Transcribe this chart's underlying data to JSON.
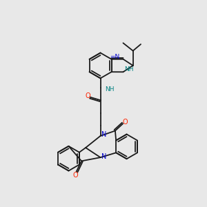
{
  "bg_color": "#e8e8e8",
  "bond_color": "#1a1a1a",
  "nitrogen_color": "#0000cc",
  "oxygen_color": "#ff2200",
  "nh_color": "#008080",
  "lw": 1.3,
  "figsize": [
    3.0,
    3.0
  ],
  "dpi": 100,
  "xlim": [
    0,
    10
  ],
  "ylim": [
    0,
    10
  ]
}
